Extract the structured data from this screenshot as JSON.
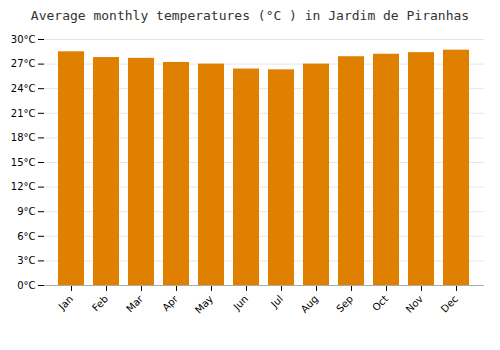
{
  "chart_data": {
    "type": "bar",
    "title": "Average monthly temperatures (°C ) in Jardim de Piranhas",
    "categories": [
      "Jan",
      "Feb",
      "Mar",
      "Apr",
      "May",
      "Jun",
      "Jul",
      "Aug",
      "Sep",
      "Oct",
      "Nov",
      "Dec"
    ],
    "values": [
      28.5,
      27.8,
      27.7,
      27.2,
      27.0,
      26.4,
      26.3,
      27.0,
      27.9,
      28.2,
      28.4,
      28.7
    ],
    "color": "#E08000",
    "ylim": [
      0,
      30
    ],
    "yticks": [
      {
        "value": 0,
        "label": "0°C"
      },
      {
        "value": 3,
        "label": "3°C"
      },
      {
        "value": 6,
        "label": "6°C"
      },
      {
        "value": 9,
        "label": "9°C"
      },
      {
        "value": 12,
        "label": "12°C"
      },
      {
        "value": 15,
        "label": "15°C"
      },
      {
        "value": 18,
        "label": "18°C"
      },
      {
        "value": 21,
        "label": "21°C"
      },
      {
        "value": 24,
        "label": "24°C"
      },
      {
        "value": 27,
        "label": "27°C"
      },
      {
        "value": 30,
        "label": "30°C"
      }
    ],
    "grid": true
  }
}
